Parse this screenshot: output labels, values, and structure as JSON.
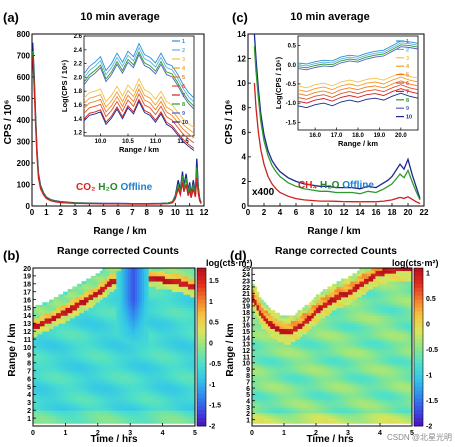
{
  "panels": {
    "a": {
      "letter": "(a)",
      "title": "10 min average",
      "ylabel": "CPS / 10⁶",
      "xlabel": "Range / km",
      "note_parts": [
        {
          "t": "CO₂",
          "c": "#e0201b"
        },
        {
          "t": " ",
          "c": "#000000"
        },
        {
          "t": "H₂O",
          "c": "#1f8a1f"
        },
        {
          "t": " Offline",
          "c": "#1f7fd0"
        }
      ],
      "inset_ylabel": "Log(CPS / 10⁶)",
      "inset_xlabel": "Range / km"
    },
    "b": {
      "letter": "(b)",
      "title": "Range corrected Counts",
      "ylabel": "Range / km",
      "xlabel": "Time / hrs",
      "cbar_label": "log(cts·m²)"
    },
    "c": {
      "letter": "(c)",
      "title": "10 min average",
      "ylabel": "CPS / 10⁶",
      "xlabel": "Range / km",
      "x400": "x400",
      "note_parts": [
        {
          "t": "CH₄",
          "c": "#e0201b"
        },
        {
          "t": " ",
          "c": "#000000"
        },
        {
          "t": "H₂O",
          "c": "#1f8a1f"
        },
        {
          "t": " Offline",
          "c": "#1f7fd0"
        }
      ],
      "inset_ylabel": "Log(CPS / 10⁶)",
      "inset_xlabel": "Range / km"
    },
    "d": {
      "letter": "(d)",
      "title": "Range corrected Counts",
      "ylabel": "Range / km",
      "xlabel": "Time / hrs",
      "cbar_label": "log(cts·m²)"
    }
  },
  "watermark": "CSDN @北星光明",
  "legend": {
    "entries": [
      "1",
      "2",
      "3",
      "4",
      "5",
      "6",
      "7",
      "8",
      "9",
      "10"
    ],
    "colors": [
      "#2a8fd6",
      "#58b3e6",
      "#f2c24a",
      "#f0a030",
      "#ef8020",
      "#e24e2a",
      "#cf2020",
      "#2e9a2e",
      "#5060c0",
      "#1a2890"
    ]
  },
  "colormap": [
    "#4b0fbf",
    "#3b4fe6",
    "#2f8fef",
    "#33c7e8",
    "#4fe0c8",
    "#8ee68a",
    "#d7e65a",
    "#f6c340",
    "#f47a2a",
    "#de2b1f",
    "#b8101e"
  ],
  "chart_data": [
    {
      "id": "a",
      "type": "line",
      "xlim": [
        0,
        12
      ],
      "ylim": [
        0,
        800
      ],
      "xticks": [
        0,
        1,
        2,
        3,
        4,
        5,
        6,
        7,
        8,
        9,
        10,
        11,
        12
      ],
      "yticks": [
        0,
        100,
        200,
        300,
        400,
        500,
        600,
        700,
        800
      ],
      "series_groups": [
        {
          "color": "#1a2890",
          "x": [
            0.05,
            0.15,
            0.25,
            0.35,
            0.45,
            0.6,
            0.8,
            1.0,
            1.3,
            1.6,
            2,
            2.5,
            3,
            4,
            5,
            6,
            7,
            8,
            9,
            9.5,
            9.8,
            10.0,
            10.2,
            10.35,
            10.5,
            10.6,
            10.75,
            10.9,
            11.0,
            11.1,
            11.25,
            11.4,
            11.5,
            11.6,
            11.7,
            11.8
          ],
          "y": [
            760,
            620,
            420,
            260,
            150,
            95,
            62,
            42,
            30,
            24,
            20,
            17,
            15,
            13,
            12,
            12,
            11,
            11,
            12,
            14,
            20,
            48,
            120,
            75,
            160,
            95,
            150,
            70,
            110,
            55,
            120,
            60,
            220,
            90,
            35,
            15
          ]
        },
        {
          "color": "#2e9a2e",
          "x": [
            0.05,
            0.15,
            0.25,
            0.35,
            0.45,
            0.6,
            0.8,
            1.0,
            1.3,
            1.6,
            2,
            2.5,
            3,
            4,
            5,
            6,
            7,
            8,
            9,
            9.5,
            9.8,
            10.0,
            10.2,
            10.35,
            10.5,
            10.6,
            10.75,
            10.9,
            11.0,
            11.1,
            11.25,
            11.4,
            11.5,
            11.6,
            11.7,
            11.8
          ],
          "y": [
            720,
            590,
            400,
            245,
            140,
            88,
            58,
            39,
            28,
            22,
            18,
            16,
            14,
            12,
            11,
            11,
            10,
            10,
            11,
            13,
            18,
            42,
            100,
            65,
            140,
            82,
            130,
            60,
            95,
            48,
            100,
            52,
            180,
            75,
            30,
            13
          ]
        },
        {
          "color": "#cf2020",
          "x": [
            0.05,
            0.15,
            0.25,
            0.35,
            0.45,
            0.6,
            0.8,
            1.0,
            1.3,
            1.6,
            2,
            2.5,
            3,
            4,
            5,
            6,
            7,
            8,
            9,
            9.5,
            9.8,
            10.0,
            10.2,
            10.35,
            10.5,
            10.6,
            10.75,
            10.9,
            11.0,
            11.1,
            11.25,
            11.4,
            11.5,
            11.6,
            11.7,
            11.8
          ],
          "y": [
            690,
            560,
            380,
            230,
            130,
            80,
            52,
            35,
            25,
            20,
            16,
            14,
            12,
            11,
            10,
            10,
            9,
            9,
            10,
            11,
            15,
            34,
            80,
            52,
            110,
            66,
            100,
            48,
            75,
            38,
            80,
            42,
            130,
            58,
            24,
            11
          ]
        }
      ],
      "inset": {
        "xlim": [
          9.7,
          11.7
        ],
        "ylim": [
          1.15,
          2.6
        ],
        "xticks": [
          10.0,
          10.5,
          11.0,
          11.5
        ],
        "yticks": [
          1.2,
          1.4,
          1.6,
          1.8,
          2.0,
          2.2,
          2.4,
          2.6
        ],
        "x": [
          9.7,
          9.8,
          9.9,
          10.0,
          10.1,
          10.2,
          10.3,
          10.4,
          10.5,
          10.6,
          10.7,
          10.8,
          10.9,
          11.0,
          11.1,
          11.2,
          11.3,
          11.4,
          11.5,
          11.6,
          11.7
        ],
        "top": [
          2.05,
          2.16,
          2.22,
          2.3,
          2.1,
          2.2,
          2.35,
          2.22,
          2.38,
          2.3,
          2.49,
          2.33,
          2.29,
          2.21,
          2.35,
          2.2,
          2.17,
          2.05,
          1.9,
          1.78,
          1.7
        ],
        "upper_group": [
          [
            0,
            0.0
          ],
          [
            1,
            -0.06
          ],
          [
            7,
            -0.12
          ],
          [
            8,
            -0.16
          ]
        ],
        "lower_group": [
          [
            2,
            0.0
          ],
          [
            3,
            -0.08
          ],
          [
            4,
            -0.15
          ],
          [
            5,
            -0.22
          ],
          [
            6,
            -0.3
          ],
          [
            9,
            -0.33
          ]
        ],
        "lower_base": [
          1.7,
          1.78,
          1.8,
          1.83,
          1.65,
          1.74,
          1.87,
          1.73,
          1.89,
          1.8,
          1.98,
          1.82,
          1.78,
          1.68,
          1.8,
          1.65,
          1.6,
          1.5,
          1.4,
          1.33,
          1.27
        ]
      }
    },
    {
      "id": "b",
      "type": "heatmap",
      "xlim": [
        0,
        5
      ],
      "ylim": [
        0,
        20
      ],
      "xticks": [
        0,
        1,
        2,
        3,
        4,
        5
      ],
      "yticks": [
        1,
        2,
        3,
        4,
        5,
        6,
        7,
        8,
        9,
        10,
        11,
        12,
        13,
        14,
        15,
        16,
        17,
        18,
        19,
        20
      ],
      "clim": [
        -2,
        1.8
      ],
      "cticks": [
        1.5,
        1,
        0.5,
        0,
        -0.5,
        -1,
        -1.5,
        -2
      ],
      "base_level": -0.6,
      "boundary_t": [
        0.0,
        0.3,
        0.6,
        0.9,
        1.2,
        1.5,
        1.8,
        2.0,
        2.2,
        2.4,
        2.6,
        2.8,
        3.0,
        3.3,
        3.6,
        3.9,
        4.2,
        4.5,
        4.8,
        5.0
      ],
      "boundary_km": [
        12.5,
        13.0,
        13.6,
        14.2,
        14.9,
        15.6,
        16.3,
        16.8,
        17.5,
        18.2,
        18.6,
        19.0,
        19.3,
        19.1,
        18.8,
        18.6,
        18.4,
        18.2,
        17.8,
        17.5
      ],
      "bands": [
        [
          -0.35,
          0.35,
          1.7
        ],
        [
          0.35,
          1.0,
          0.6
        ],
        [
          -1.2,
          -0.35,
          0.2
        ],
        [
          1.0,
          2.2,
          -0.1
        ]
      ],
      "dark_zone": {
        "t0": 2.6,
        "t1": 3.6,
        "km_top": 19.5,
        "level": -1.6
      }
    },
    {
      "id": "c",
      "type": "line",
      "xlim": [
        0,
        22
      ],
      "ylim": [
        0,
        14
      ],
      "xticks": [
        0,
        2,
        4,
        6,
        8,
        10,
        12,
        14,
        16,
        18,
        20,
        22
      ],
      "yticks": [
        0,
        2,
        4,
        6,
        8,
        10,
        12,
        14
      ],
      "series_groups": [
        {
          "color": "#1a2890",
          "x": [
            0.8,
            1.0,
            1.3,
            1.6,
            2,
            2.5,
            3,
            3.5,
            4,
            5,
            6,
            7,
            8,
            9,
            10,
            11,
            12,
            13,
            14,
            15,
            16,
            17,
            17.5,
            18,
            18.5,
            19,
            19.5,
            20,
            20.5,
            21,
            21.5
          ],
          "y": [
            14,
            12,
            9.5,
            7.5,
            5.8,
            4.5,
            3.7,
            3.2,
            2.8,
            2.3,
            2.0,
            1.8,
            1.7,
            1.6,
            1.6,
            1.5,
            1.5,
            1.5,
            1.4,
            1.6,
            1.5,
            1.9,
            2.1,
            2.4,
            2.9,
            3.4,
            3.0,
            3.8,
            2.6,
            1.6,
            0.6
          ]
        },
        {
          "color": "#2e9a2e",
          "x": [
            0.8,
            1.0,
            1.3,
            1.6,
            2,
            2.5,
            3,
            3.5,
            4,
            5,
            6,
            7,
            8,
            9,
            10,
            11,
            12,
            13,
            14,
            15,
            16,
            17,
            17.5,
            18,
            18.5,
            19,
            19.5,
            20,
            20.5,
            21,
            21.5
          ],
          "y": [
            13,
            11,
            8.8,
            6.9,
            5.3,
            4.1,
            3.3,
            2.8,
            2.4,
            1.9,
            1.6,
            1.4,
            1.3,
            1.2,
            1.2,
            1.1,
            1.1,
            1.1,
            1.0,
            1.2,
            1.1,
            1.4,
            1.6,
            1.8,
            2.2,
            2.6,
            2.3,
            2.9,
            2.0,
            1.2,
            0.5
          ]
        },
        {
          "color": "#cf2020",
          "x": [
            0.8,
            1.0,
            1.3,
            1.6,
            2,
            2.5,
            3,
            3.5,
            4,
            5,
            6,
            7,
            8,
            9,
            10,
            11,
            12,
            13,
            14,
            15,
            16,
            17,
            17.5,
            18,
            18.5,
            19,
            19.5,
            20,
            20.5,
            21,
            21.5
          ],
          "y": [
            10,
            8,
            6,
            4.6,
            3.4,
            2.4,
            1.8,
            1.4,
            1.1,
            0.8,
            0.6,
            0.5,
            0.45,
            0.4,
            0.4,
            0.38,
            0.36,
            0.35,
            0.34,
            0.36,
            0.34,
            0.4,
            0.45,
            0.5,
            0.6,
            0.7,
            0.62,
            0.75,
            0.55,
            0.35,
            0.2
          ]
        }
      ],
      "inset": {
        "xlim": [
          15.2,
          20.8
        ],
        "ylim": [
          -1.7,
          0.75
        ],
        "xticks": [
          16.0,
          17.0,
          18.0,
          19.0,
          20.0
        ],
        "yticks": [
          0.5,
          0.0,
          -0.5,
          -1.0,
          -1.5
        ],
        "x": [
          15.2,
          15.6,
          16.0,
          16.4,
          16.8,
          17.2,
          17.6,
          18.0,
          18.4,
          18.8,
          19.2,
          19.6,
          20.0,
          20.4,
          20.8
        ],
        "top": [
          0.05,
          0.02,
          0.08,
          0.12,
          0.1,
          0.2,
          0.25,
          0.22,
          0.3,
          0.35,
          0.38,
          0.5,
          0.62,
          0.6,
          0.56
        ],
        "upper_group": [
          [
            0,
            0.0
          ],
          [
            1,
            -0.05
          ],
          [
            7,
            -0.1
          ],
          [
            8,
            -0.15
          ]
        ],
        "lower_group": [
          [
            2,
            0.0
          ],
          [
            3,
            -0.1
          ],
          [
            4,
            -0.2
          ],
          [
            5,
            -0.3
          ],
          [
            6,
            -0.4
          ],
          [
            9,
            -0.52
          ]
        ],
        "lower_base": [
          -0.55,
          -0.6,
          -0.52,
          -0.48,
          -0.55,
          -0.45,
          -0.4,
          -0.45,
          -0.38,
          -0.35,
          -0.4,
          -0.3,
          -0.22,
          -0.3,
          -0.35
        ]
      }
    },
    {
      "id": "d",
      "type": "heatmap",
      "xlim": [
        0,
        5
      ],
      "ylim": [
        0,
        25
      ],
      "xticks": [
        0,
        1,
        2,
        3,
        4,
        5
      ],
      "yticks": [
        1,
        2,
        3,
        4,
        5,
        6,
        7,
        8,
        9,
        10,
        11,
        12,
        13,
        14,
        15,
        16,
        17,
        18,
        19,
        20,
        21,
        22,
        23,
        24,
        25
      ],
      "clim": [
        -2,
        1.1
      ],
      "cticks": [
        1,
        0.5,
        0,
        -0.5,
        -1,
        -1.5,
        -2
      ],
      "base_level": -0.55,
      "boundary_t": [
        0.0,
        0.3,
        0.6,
        0.9,
        1.2,
        1.5,
        1.8,
        2.1,
        2.4,
        2.7,
        3.0,
        3.3,
        3.6,
        3.9,
        4.2,
        4.5,
        4.8,
        5.0
      ],
      "boundary_km": [
        20.5,
        17.5,
        16.0,
        15.0,
        14.8,
        15.8,
        17.0,
        18.5,
        19.5,
        20.5,
        21.0,
        22.0,
        23.0,
        24.0,
        24.5,
        24.8,
        24.8,
        24.8
      ],
      "bands": [
        [
          -0.4,
          0.5,
          1.0
        ],
        [
          0.5,
          1.5,
          0.3
        ],
        [
          -1.8,
          -0.4,
          -0.1
        ],
        [
          1.5,
          2.5,
          -0.25
        ]
      ],
      "dark_zone": null
    }
  ]
}
